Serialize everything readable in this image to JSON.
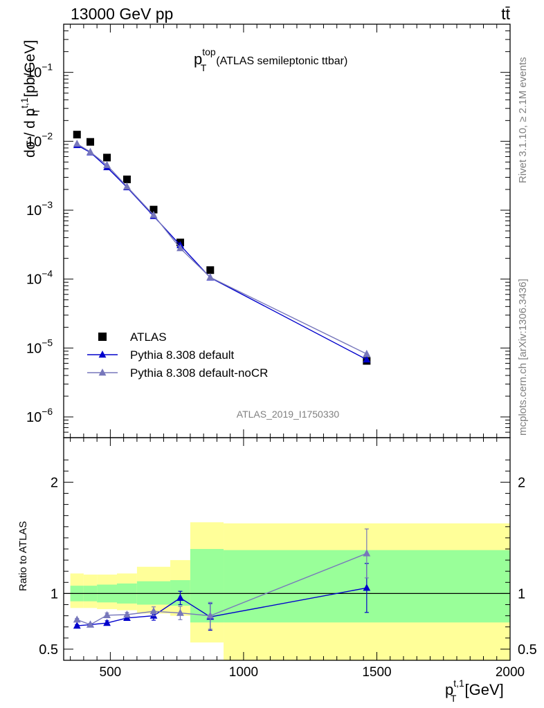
{
  "header": {
    "left": "13000 GeV pp",
    "right": "tt̄"
  },
  "side": {
    "rivet": "Rivet 3.1.10, ≥ 2.1M events",
    "mcplots": "mcplots.cern.ch [arXiv:1306.3436]"
  },
  "chart_data": [
    {
      "type": "line",
      "title_main": "p",
      "title_sup": "top",
      "title_sub": "T",
      "title_rest": "(ATLAS semileptonic ttbar)",
      "ylabel": "dσ / d p_T^{t,1} [pb/GeV]",
      "ylabel_parts": {
        "a": "dσ / d p",
        "sup": "t,1",
        "sub": "T",
        "b": " [pb/GeV]"
      },
      "yscale": "log",
      "ylim": [
        5e-07,
        0.5
      ],
      "xlim": [
        325,
        2000
      ],
      "watermark": "ATLAS_2019_I1750330",
      "y_ticks": [
        {
          "base": "10",
          "exp": "−1"
        },
        {
          "base": "10",
          "exp": "−2"
        },
        {
          "base": "10",
          "exp": "−3"
        },
        {
          "base": "10",
          "exp": "−4"
        },
        {
          "base": "10",
          "exp": "−5"
        },
        {
          "base": "10",
          "exp": "−6"
        }
      ],
      "legend": [
        "ATLAS",
        "Pythia 8.308 default",
        "Pythia 8.308 default-noCR"
      ],
      "legend_position": "bottom-left",
      "series": [
        {
          "name": "ATLAS",
          "color": "#000000",
          "marker": "square",
          "x": [
            375,
            425,
            487.5,
            562.5,
            662.5,
            762.5,
            875,
            1462
          ],
          "y": [
            0.0125,
            0.0098,
            0.0058,
            0.0028,
            0.00102,
            0.00034,
            0.000135,
            6.5e-06
          ]
        },
        {
          "name": "Pythia 8.308 default",
          "color": "#0000cc",
          "marker": "triangle",
          "x": [
            375,
            425,
            487.5,
            562.5,
            662.5,
            762.5,
            875,
            1462
          ],
          "y": [
            0.0088,
            0.0069,
            0.0042,
            0.00215,
            0.00082,
            0.00031,
            0.000105,
            6.8e-06
          ]
        },
        {
          "name": "Pythia 8.308 default-noCR",
          "color": "#7777bb",
          "marker": "triangle",
          "x": [
            375,
            425,
            487.5,
            562.5,
            662.5,
            762.5,
            875,
            1462
          ],
          "y": [
            0.0092,
            0.007,
            0.0045,
            0.0022,
            0.00085,
            0.00028,
            0.000106,
            8.2e-06
          ]
        }
      ]
    },
    {
      "type": "line",
      "ylabel": "Ratio to ATLAS",
      "xlabel_parts": {
        "a": "p",
        "sup": "t,1",
        "sub": "T",
        "b": " [GeV]"
      },
      "ylim": [
        0.4,
        2.4
      ],
      "xlim": [
        325,
        2000
      ],
      "x_ticks": [
        "500",
        "1000",
        "1500",
        "2000"
      ],
      "y_ticks": [
        "0.5",
        "1",
        "2"
      ],
      "bands": {
        "edges": [
          350,
          400,
          450,
          525,
          600,
          725,
          800,
          925,
          2000
        ],
        "yellow": [
          [
            0.87,
            1.18
          ],
          [
            0.87,
            1.17
          ],
          [
            0.86,
            1.17
          ],
          [
            0.85,
            1.18
          ],
          [
            0.82,
            1.24
          ],
          [
            0.8,
            1.3
          ],
          [
            0.56,
            1.64
          ],
          [
            0.38,
            1.63
          ]
        ],
        "green": [
          [
            0.93,
            1.07
          ],
          [
            0.93,
            1.07
          ],
          [
            0.92,
            1.08
          ],
          [
            0.91,
            1.09
          ],
          [
            0.9,
            1.11
          ],
          [
            0.89,
            1.12
          ],
          [
            0.74,
            1.4
          ],
          [
            0.74,
            1.39
          ]
        ]
      },
      "band_colors": {
        "yellow": "#ffff99",
        "green": "#99ff99"
      },
      "series": [
        {
          "name": "Pythia 8.308 default",
          "color": "#0000cc",
          "x": [
            375,
            425,
            487.5,
            562.5,
            662.5,
            762.5,
            875,
            1462
          ],
          "y": [
            0.71,
            0.72,
            0.735,
            0.78,
            0.8,
            0.96,
            0.79,
            1.05
          ],
          "err": [
            0.01,
            0.01,
            0.02,
            0.02,
            0.04,
            0.06,
            0.12,
            0.22
          ]
        },
        {
          "name": "Pythia 8.308 default-noCR",
          "color": "#7777bb",
          "x": [
            375,
            425,
            487.5,
            562.5,
            662.5,
            762.5,
            875,
            1462
          ],
          "y": [
            0.765,
            0.72,
            0.805,
            0.81,
            0.84,
            0.825,
            0.8,
            1.36
          ],
          "err": [
            0.01,
            0.01,
            0.02,
            0.02,
            0.04,
            0.06,
            0.12,
            0.22
          ]
        }
      ]
    }
  ]
}
